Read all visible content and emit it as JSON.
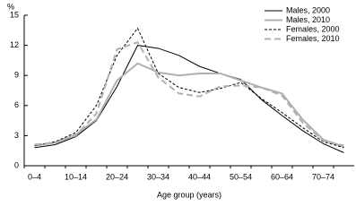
{
  "chart_data": {
    "type": "line",
    "y_label": "%",
    "x_label": "Age group (years)",
    "categories": [
      "0–4",
      null,
      "10–14",
      null,
      "20–24",
      null,
      "30–34",
      null,
      "40–44",
      null,
      "50–54",
      null,
      "60–64",
      null,
      "70–74",
      null
    ],
    "series": [
      {
        "name": "Males, 2000",
        "color": "#000000",
        "dash": false,
        "values": [
          1.8,
          2.1,
          2.9,
          4.5,
          7.9,
          12.0,
          11.7,
          11.0,
          9.9,
          9.2,
          8.6,
          6.6,
          5.0,
          3.5,
          2.2,
          1.3
        ]
      },
      {
        "name": "Males, 2010",
        "color": "#b0b0b0",
        "dash": false,
        "values": [
          2.0,
          2.3,
          3.1,
          4.6,
          8.5,
          10.2,
          9.3,
          9.0,
          9.2,
          9.2,
          8.5,
          7.8,
          7.2,
          4.6,
          2.6,
          1.9
        ]
      },
      {
        "name": "Females, 2000",
        "color": "#000000",
        "dash": true,
        "values": [
          2.0,
          2.4,
          3.3,
          6.0,
          11.0,
          13.7,
          9.2,
          7.8,
          7.3,
          7.7,
          8.3,
          6.7,
          5.3,
          3.8,
          2.4,
          1.8
        ]
      },
      {
        "name": "Females, 2010",
        "color": "#b0b0b0",
        "dash": true,
        "values": [
          2.1,
          2.3,
          3.0,
          5.2,
          11.6,
          12.3,
          8.8,
          7.2,
          6.9,
          7.9,
          8.0,
          7.8,
          7.0,
          4.3,
          2.5,
          2.0
        ]
      }
    ],
    "ylim": [
      0,
      15
    ],
    "yticks": [
      0,
      3,
      6,
      9,
      12,
      15
    ],
    "legend": "top-right"
  }
}
